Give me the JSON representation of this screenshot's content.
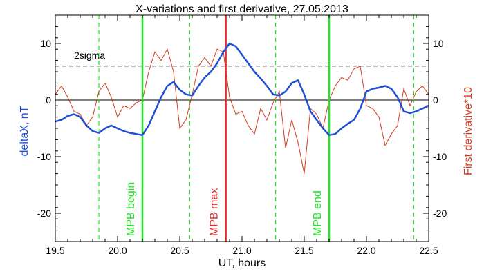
{
  "chart_data": {
    "type": "line",
    "title": "X-variations and first derivative, 27.05.2013",
    "xlabel": "UT, hours",
    "ylabel_left": "deltaX, nT",
    "ylabel_right": "First derivative*10",
    "xlim": [
      19.5,
      22.5
    ],
    "ylim": [
      -25,
      15
    ],
    "x_ticks": [
      "19.5",
      "20.0",
      "20.5",
      "21.0",
      "21.5",
      "22.0",
      "22.5"
    ],
    "y_ticks_left": [
      "10",
      "0",
      "-10",
      "-20"
    ],
    "y_ticks_right": [
      "10",
      "0",
      "-10",
      "-20"
    ],
    "grid": false,
    "threshold": {
      "label": "2sigma",
      "value": 6
    },
    "zero_line": 0,
    "colors": {
      "deltaX": "#1f4fd6",
      "derivative": "#d23c1e",
      "mpb_bounds": "#22e52a",
      "mpb_max": "#e02a2a",
      "minima": "#22e52a"
    },
    "vlines": [
      {
        "x": 20.2,
        "label": "MPB begin",
        "kind": "bound"
      },
      {
        "x": 20.87,
        "label": "MPB max",
        "kind": "max"
      },
      {
        "x": 21.7,
        "label": "MPB end",
        "kind": "bound"
      }
    ],
    "dashed_vlines": [
      19.85,
      20.58,
      21.27,
      22.38
    ],
    "series": [
      {
        "key": "deltaX",
        "x": [
          19.5,
          19.55,
          19.6,
          19.65,
          19.7,
          19.75,
          19.8,
          19.85,
          19.9,
          19.95,
          20.0,
          20.05,
          20.1,
          20.15,
          20.2,
          20.25,
          20.3,
          20.35,
          20.4,
          20.45,
          20.5,
          20.55,
          20.6,
          20.65,
          20.7,
          20.75,
          20.8,
          20.85,
          20.9,
          20.95,
          21.0,
          21.05,
          21.1,
          21.15,
          21.2,
          21.25,
          21.3,
          21.35,
          21.4,
          21.45,
          21.5,
          21.55,
          21.6,
          21.65,
          21.7,
          21.75,
          21.8,
          21.85,
          21.9,
          21.95,
          22.0,
          22.05,
          22.1,
          22.15,
          22.2,
          22.25,
          22.3,
          22.35,
          22.4,
          22.45,
          22.5
        ],
        "values": [
          -3.8,
          -3.5,
          -2.8,
          -2.5,
          -3.0,
          -4.5,
          -5.5,
          -5.8,
          -5.0,
          -4.5,
          -5.0,
          -5.5,
          -5.8,
          -6.0,
          -6.2,
          -4.5,
          -2.0,
          0.5,
          2.5,
          3.2,
          1.8,
          1.0,
          0.8,
          2.5,
          4.0,
          5.0,
          6.5,
          8.5,
          10.0,
          9.5,
          8.0,
          6.5,
          5.0,
          3.8,
          2.5,
          1.0,
          0.8,
          1.5,
          3.0,
          3.5,
          1.0,
          -2.0,
          -3.5,
          -5.0,
          -6.2,
          -6.0,
          -5.0,
          -4.2,
          -3.5,
          -1.5,
          1.5,
          2.0,
          2.2,
          2.5,
          2.0,
          0.5,
          -2.0,
          -2.3,
          -2.0,
          -1.5,
          -1.0
        ]
      },
      {
        "key": "derivative",
        "x": [
          19.5,
          19.55,
          19.6,
          19.65,
          19.7,
          19.75,
          19.8,
          19.85,
          19.9,
          19.95,
          20.0,
          20.05,
          20.1,
          20.15,
          20.2,
          20.25,
          20.3,
          20.35,
          20.4,
          20.45,
          20.5,
          20.55,
          20.6,
          20.65,
          20.7,
          20.75,
          20.8,
          20.85,
          20.9,
          20.95,
          21.0,
          21.05,
          21.1,
          21.15,
          21.2,
          21.25,
          21.3,
          21.35,
          21.4,
          21.45,
          21.5,
          21.55,
          21.6,
          21.65,
          21.7,
          21.75,
          21.8,
          21.85,
          21.9,
          21.95,
          22.0,
          22.05,
          22.1,
          22.15,
          22.2,
          22.25,
          22.3,
          22.35,
          22.4,
          22.45,
          22.5
        ],
        "values": [
          1.0,
          2.5,
          0.5,
          -2.0,
          -2.5,
          -4.5,
          -3.0,
          1.5,
          3.0,
          0.5,
          -3.0,
          -1.0,
          -1.5,
          -0.5,
          0.0,
          5.0,
          8.5,
          7.0,
          9.0,
          5.0,
          -5.0,
          -3.5,
          1.0,
          6.0,
          7.5,
          6.0,
          9.0,
          8.5,
          0.5,
          -2.5,
          -2.0,
          -4.5,
          -6.0,
          -1.5,
          -3.5,
          -0.5,
          1.5,
          -8.5,
          -3.5,
          -7.5,
          -13.0,
          -1.5,
          -2.5,
          -5.0,
          0.0,
          2.5,
          4.0,
          3.5,
          5.5,
          6.0,
          -1.0,
          -1.5,
          -3.0,
          -8.0,
          -6.0,
          -4.5,
          2.0,
          -1.0,
          1.5,
          2.5,
          1.0
        ]
      }
    ]
  }
}
